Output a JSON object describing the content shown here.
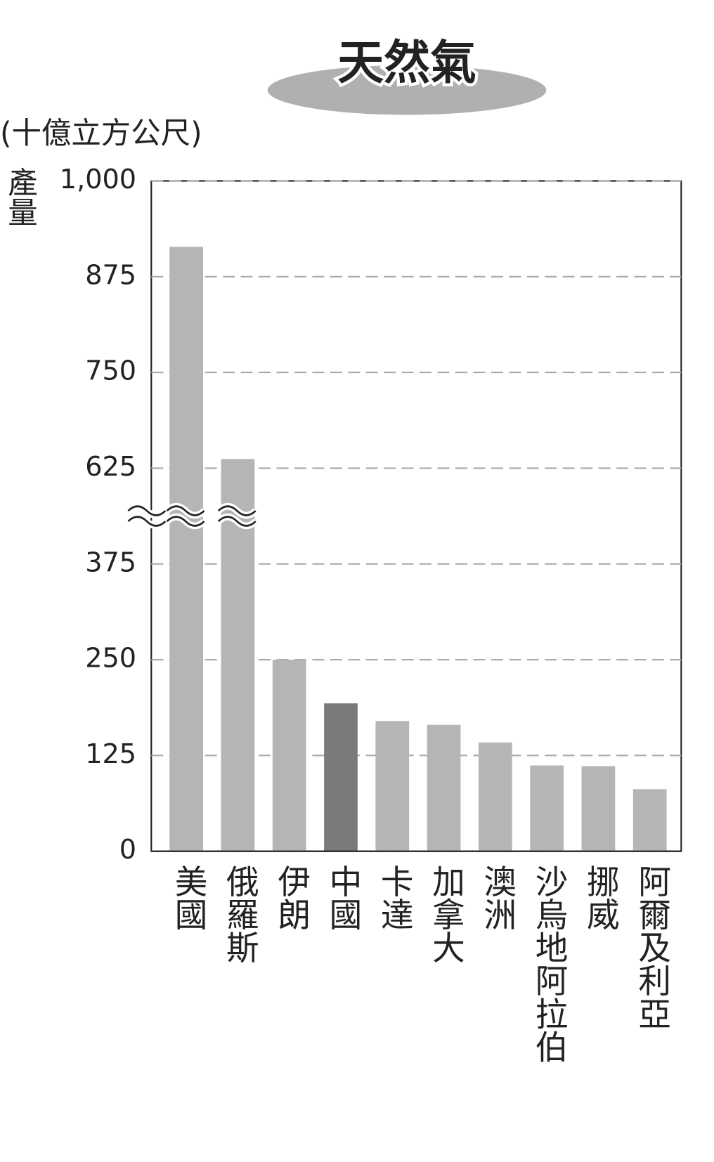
{
  "chart_data": {
    "type": "bar",
    "title": "天然氣",
    "unit_label": "(十億立方公尺)",
    "y_label": "產量",
    "categories": [
      "美國",
      "俄羅斯",
      "伊朗",
      "中國",
      "卡達",
      "加拿大",
      "澳洲",
      "沙烏地阿拉伯",
      "挪威",
      "阿爾及利亞"
    ],
    "values": [
      914,
      637,
      250,
      193,
      170,
      165,
      142,
      112,
      111,
      81
    ],
    "colors": [
      "#b5b5b5",
      "#b5b5b5",
      "#b5b5b5",
      "#7a7a7a",
      "#b5b5b5",
      "#b5b5b5",
      "#b5b5b5",
      "#b5b5b5",
      "#b5b5b5",
      "#b5b5b5"
    ],
    "label_colors": [
      "#222222",
      "#222222",
      "#222222",
      "#8a8a8a",
      "#222222",
      "#222222",
      "#222222",
      "#222222",
      "#222222",
      "#222222"
    ],
    "ylim": [
      0,
      1000
    ],
    "yticks": [
      0,
      125,
      250,
      375,
      625,
      750,
      875,
      {
        "value": 1000,
        "label": "1,000"
      }
    ],
    "axis_break": [
      375,
      625
    ],
    "grid": true
  }
}
